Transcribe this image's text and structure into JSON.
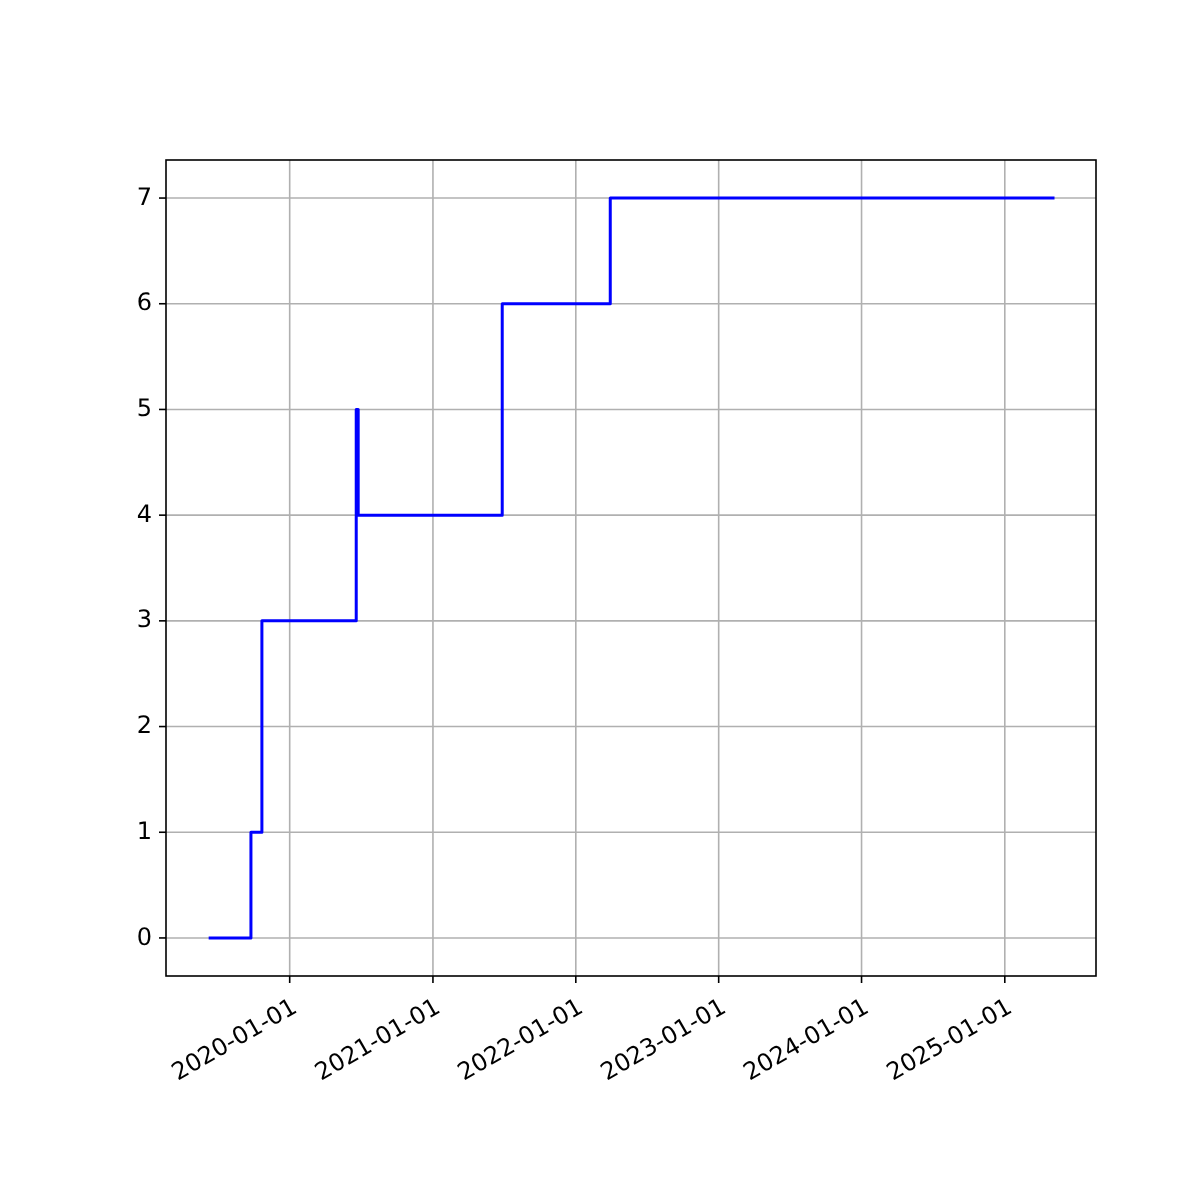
{
  "chart_data": {
    "type": "step",
    "x": [
      "2019-06-08",
      "2019-09-24",
      "2019-10-22",
      "2020-06-19",
      "2020-06-24",
      "2021-06-27",
      "2022-03-30",
      "2025-05-08"
    ],
    "series": [
      {
        "color": "#0000ff",
        "values": [
          0,
          1,
          3,
          5,
          4,
          6,
          7,
          7
        ]
      }
    ],
    "xlim": [
      "2019-02-19",
      "2025-08-22"
    ],
    "ylim": [
      -0.36,
      7.36
    ],
    "xticks": [
      {
        "value": "2020-01-01",
        "label": "2020-01-01"
      },
      {
        "value": "2021-01-01",
        "label": "2021-01-01"
      },
      {
        "value": "2022-01-01",
        "label": "2022-01-01"
      },
      {
        "value": "2023-01-01",
        "label": "2023-01-01"
      },
      {
        "value": "2024-01-01",
        "label": "2024-01-01"
      },
      {
        "value": "2025-01-01",
        "label": "2025-01-01"
      }
    ],
    "yticks": [
      0,
      1,
      2,
      3,
      4,
      5,
      6,
      7
    ],
    "grid": true
  }
}
